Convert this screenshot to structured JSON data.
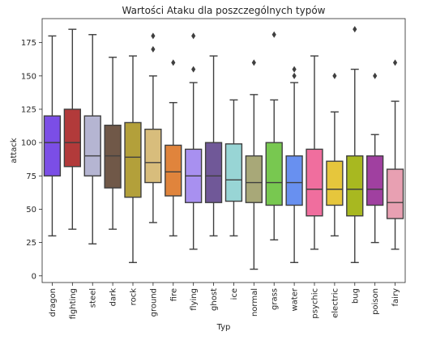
{
  "chart_data": {
    "type": "box",
    "title": "Wartości Ataku dla poszczególnych typów",
    "xlabel": "Typ",
    "ylabel": "attack",
    "ylim": [
      -5,
      193
    ],
    "yticks": [
      0,
      25,
      50,
      75,
      100,
      125,
      150,
      175
    ],
    "grid": false,
    "categories": [
      "dragon",
      "fighting",
      "steel",
      "dark",
      "rock",
      "ground",
      "fire",
      "flying",
      "ghost",
      "ice",
      "normal",
      "grass",
      "water",
      "psychic",
      "electric",
      "bug",
      "poison",
      "fairy"
    ],
    "colors": [
      "#7b4ee6",
      "#b23a3a",
      "#b5b5d2",
      "#705848",
      "#b3a03a",
      "#d8bd7c",
      "#e0843c",
      "#a890f0",
      "#705898",
      "#98d5d5",
      "#a8a878",
      "#78c850",
      "#6890f0",
      "#f06e9e",
      "#e6c63c",
      "#a8b820",
      "#a040a0",
      "#e8a0b2"
    ],
    "boxes": [
      {
        "whislo": 30,
        "q1": 75,
        "med": 100,
        "q3": 120,
        "whishi": 180,
        "fliers": []
      },
      {
        "whislo": 35,
        "q1": 82,
        "med": 100,
        "q3": 125,
        "whishi": 185,
        "fliers": []
      },
      {
        "whislo": 24,
        "q1": 75,
        "med": 90,
        "q3": 120,
        "whishi": 181,
        "fliers": []
      },
      {
        "whislo": 35,
        "q1": 66,
        "med": 90,
        "q3": 113,
        "whishi": 164,
        "fliers": []
      },
      {
        "whislo": 10,
        "q1": 59,
        "med": 89,
        "q3": 115,
        "whishi": 165,
        "fliers": []
      },
      {
        "whislo": 40,
        "q1": 70,
        "med": 85,
        "q3": 110,
        "whishi": 150,
        "fliers": [
          170,
          180
        ]
      },
      {
        "whislo": 30,
        "q1": 60,
        "med": 78,
        "q3": 98,
        "whishi": 130,
        "fliers": [
          160
        ]
      },
      {
        "whislo": 20,
        "q1": 55,
        "med": 75,
        "q3": 95,
        "whishi": 145,
        "fliers": [
          155,
          180
        ]
      },
      {
        "whislo": 30,
        "q1": 55,
        "med": 75,
        "q3": 100,
        "whishi": 165,
        "fliers": []
      },
      {
        "whislo": 30,
        "q1": 56,
        "med": 72,
        "q3": 99,
        "whishi": 132,
        "fliers": []
      },
      {
        "whislo": 5,
        "q1": 55,
        "med": 70,
        "q3": 90,
        "whishi": 136,
        "fliers": [
          160
        ]
      },
      {
        "whislo": 27,
        "q1": 53,
        "med": 70,
        "q3": 100,
        "whishi": 132,
        "fliers": [
          181
        ]
      },
      {
        "whislo": 10,
        "q1": 53,
        "med": 70,
        "q3": 90,
        "whishi": 145,
        "fliers": [
          150,
          155
        ]
      },
      {
        "whislo": 20,
        "q1": 45,
        "med": 65,
        "q3": 95,
        "whishi": 165,
        "fliers": []
      },
      {
        "whislo": 30,
        "q1": 53,
        "med": 65,
        "q3": 86,
        "whishi": 123,
        "fliers": [
          150
        ]
      },
      {
        "whislo": 10,
        "q1": 45,
        "med": 65,
        "q3": 90,
        "whishi": 155,
        "fliers": [
          185
        ]
      },
      {
        "whislo": 25,
        "q1": 53,
        "med": 65,
        "q3": 90,
        "whishi": 106,
        "fliers": [
          150
        ]
      },
      {
        "whislo": 20,
        "q1": 43,
        "med": 55,
        "q3": 80,
        "whishi": 131,
        "fliers": [
          160
        ]
      }
    ]
  }
}
